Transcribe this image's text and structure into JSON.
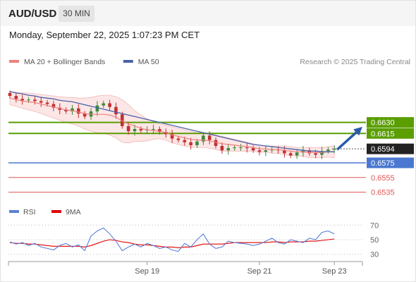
{
  "header": {
    "pair": "AUD/USD",
    "timeframe": "30 MIN",
    "datetime": "Monday, September 22, 2025 1:07:23 PM CET"
  },
  "colors": {
    "up": "#3a8a3a",
    "down": "#c03030",
    "ma20": "#f08080",
    "band_fill": "#fbdcdc",
    "ma50": "#4a62a8",
    "resistance": "#5a9e00",
    "support": "#4a78d0",
    "minor_level": "#e05555",
    "arrow": "#2a5ba8",
    "rsi": "#5b7fd6",
    "rsi_ma": "#e00000"
  },
  "chart_data": [
    {
      "type": "candlestick",
      "legend": [
        {
          "label": "MA 20 + Bollinger Bands",
          "color": "#f08080"
        },
        {
          "label": "MA 50",
          "color": "#4a62a8"
        }
      ],
      "legend_position": "top-left",
      "attribution": "Research © 2025 Trading Central",
      "ylim": [
        0.6527,
        0.6692
      ],
      "levels": [
        {
          "value": 0.663,
          "label": "0.6630",
          "kind": "resistance"
        },
        {
          "value": 0.6615,
          "label": "0.6615",
          "kind": "resistance"
        },
        {
          "value": 0.6594,
          "label": "0.6594",
          "kind": "last-price"
        },
        {
          "value": 0.6575,
          "label": "0.6575",
          "kind": "support"
        },
        {
          "value": 0.6555,
          "label": "0.6555",
          "kind": "minor"
        },
        {
          "value": 0.6535,
          "label": "0.6535",
          "kind": "minor"
        }
      ],
      "projection": {
        "from": 0.6593,
        "to": 0.6624,
        "direction": "up"
      },
      "x_ticks": [
        {
          "index": 22,
          "label": "Sep 19"
        },
        {
          "index": 40,
          "label": "Sep 21"
        },
        {
          "index": 52,
          "label": "Sep 23"
        }
      ],
      "closes": [
        0.6666,
        0.6662,
        0.666,
        0.6661,
        0.6659,
        0.6657,
        0.6655,
        0.665,
        0.6647,
        0.6645,
        0.6649,
        0.6642,
        0.6638,
        0.6645,
        0.6653,
        0.6656,
        0.6651,
        0.6641,
        0.6625,
        0.6618,
        0.6621,
        0.6619,
        0.662,
        0.6621,
        0.6617,
        0.6614,
        0.6608,
        0.6606,
        0.6603,
        0.6599,
        0.6604,
        0.6612,
        0.6606,
        0.6598,
        0.6592,
        0.6595,
        0.6596,
        0.6596,
        0.6595,
        0.6592,
        0.659,
        0.6592,
        0.6593,
        0.6592,
        0.6588,
        0.6585,
        0.6589,
        0.6592,
        0.6588,
        0.6586,
        0.6591,
        0.6593,
        0.6594
      ],
      "ma20": [
        0.6663,
        0.6661,
        0.6659,
        0.6658,
        0.6657,
        0.6655,
        0.6653,
        0.6651,
        0.6649,
        0.6647,
        0.6646,
        0.6644,
        0.6642,
        0.6641,
        0.6641,
        0.6641,
        0.664,
        0.6637,
        0.6632,
        0.6628,
        0.6625,
        0.6622,
        0.662,
        0.6619,
        0.6618,
        0.6616,
        0.6613,
        0.6611,
        0.6609,
        0.6607,
        0.6606,
        0.6606,
        0.6605,
        0.6603,
        0.6601,
        0.66,
        0.6599,
        0.6598,
        0.6597,
        0.6596,
        0.6594,
        0.6594,
        0.6593,
        0.6593,
        0.6592,
        0.6591,
        0.659,
        0.659,
        0.6589,
        0.6589,
        0.6589,
        0.659,
        0.659
      ],
      "bb_upper": [
        0.6672,
        0.6671,
        0.667,
        0.667,
        0.6669,
        0.6668,
        0.6667,
        0.6666,
        0.6665,
        0.6664,
        0.6664,
        0.6663,
        0.6663,
        0.6664,
        0.6666,
        0.6667,
        0.6667,
        0.6665,
        0.6661,
        0.6654,
        0.6646,
        0.664,
        0.6635,
        0.6631,
        0.6628,
        0.6626,
        0.6624,
        0.6622,
        0.662,
        0.6618,
        0.6616,
        0.6616,
        0.6615,
        0.6613,
        0.6611,
        0.6609,
        0.6607,
        0.6605,
        0.6603,
        0.6601,
        0.6599,
        0.6598,
        0.6598,
        0.6598,
        0.6598,
        0.6597,
        0.6596,
        0.6596,
        0.6596,
        0.6596,
        0.6596,
        0.6597,
        0.6598
      ],
      "bb_lower": [
        0.6654,
        0.6652,
        0.6649,
        0.6647,
        0.6645,
        0.6642,
        0.6639,
        0.6636,
        0.6633,
        0.663,
        0.6628,
        0.6625,
        0.6621,
        0.6618,
        0.6616,
        0.6615,
        0.6613,
        0.6609,
        0.6603,
        0.6602,
        0.6604,
        0.6604,
        0.6605,
        0.6607,
        0.6608,
        0.6606,
        0.6602,
        0.66,
        0.6598,
        0.6596,
        0.6596,
        0.6596,
        0.6595,
        0.6593,
        0.6591,
        0.6591,
        0.6591,
        0.6591,
        0.6591,
        0.6591,
        0.6589,
        0.659,
        0.6588,
        0.6588,
        0.6586,
        0.6585,
        0.6584,
        0.6584,
        0.6582,
        0.6582,
        0.6582,
        0.6583,
        0.6582
      ],
      "ma50": [
        0.6672,
        0.667,
        0.6669,
        0.6667,
        0.6666,
        0.6664,
        0.6663,
        0.6662,
        0.666,
        0.6659,
        0.6658,
        0.6656,
        0.6654,
        0.6652,
        0.665,
        0.6648,
        0.6646,
        0.6644,
        0.6642,
        0.664,
        0.6638,
        0.6636,
        0.6634,
        0.6632,
        0.663,
        0.6628,
        0.6626,
        0.6624,
        0.6622,
        0.662,
        0.6618,
        0.6616,
        0.6614,
        0.6612,
        0.661,
        0.6608,
        0.6606,
        0.6604,
        0.6602,
        0.66,
        0.6599,
        0.6598,
        0.6597,
        0.6596,
        0.6595,
        0.6594,
        0.6593,
        0.6592,
        0.6591,
        0.6591,
        0.659,
        0.659,
        0.659
      ]
    },
    {
      "type": "line",
      "legend": [
        {
          "label": "RSI",
          "color": "#5b7fd6"
        },
        {
          "label": "9MA",
          "color": "#e00000"
        }
      ],
      "ylim": [
        22,
        78
      ],
      "y_ticks": [
        70,
        50,
        30
      ],
      "rsi": [
        47,
        44,
        46,
        42,
        45,
        40,
        38,
        36,
        42,
        45,
        40,
        43,
        35,
        55,
        62,
        66,
        58,
        48,
        35,
        40,
        44,
        40,
        45,
        42,
        38,
        40,
        36,
        34,
        45,
        40,
        50,
        58,
        44,
        38,
        40,
        48,
        46,
        45,
        44,
        42,
        44,
        48,
        52,
        46,
        44,
        50,
        48,
        46,
        52,
        50,
        60,
        62,
        58
      ],
      "rsi_ma": [
        46,
        45,
        45,
        44,
        44,
        43,
        42,
        41,
        41,
        41,
        41,
        41,
        40,
        42,
        45,
        48,
        50,
        49,
        47,
        46,
        44,
        43,
        43,
        42,
        41,
        40,
        40,
        39,
        40,
        40,
        42,
        44,
        44,
        44,
        44,
        45,
        46,
        46,
        46,
        46,
        46,
        46,
        47,
        47,
        46,
        47,
        47,
        47,
        48,
        48,
        49,
        50,
        51
      ]
    }
  ]
}
